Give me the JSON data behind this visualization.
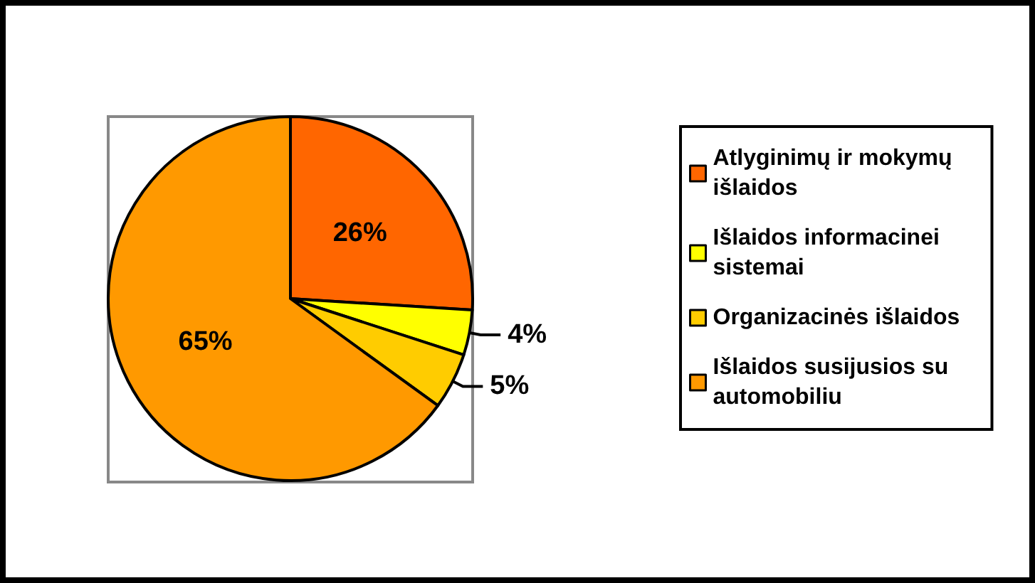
{
  "chart_data": {
    "type": "pie",
    "categories": [
      "Atlyginimų ir mokymų išlaidos",
      "Išlaidos informacinei sistemai",
      "Organizacinės išlaidos",
      "Išlaidos susijusios su automobiliu"
    ],
    "values": [
      26,
      4,
      5,
      65
    ],
    "colors": [
      "#ff6600",
      "#ffff00",
      "#ffcc00",
      "#ff9900"
    ],
    "value_labels": [
      "26%",
      "4%",
      "5%",
      "65%"
    ],
    "legend": "right"
  }
}
